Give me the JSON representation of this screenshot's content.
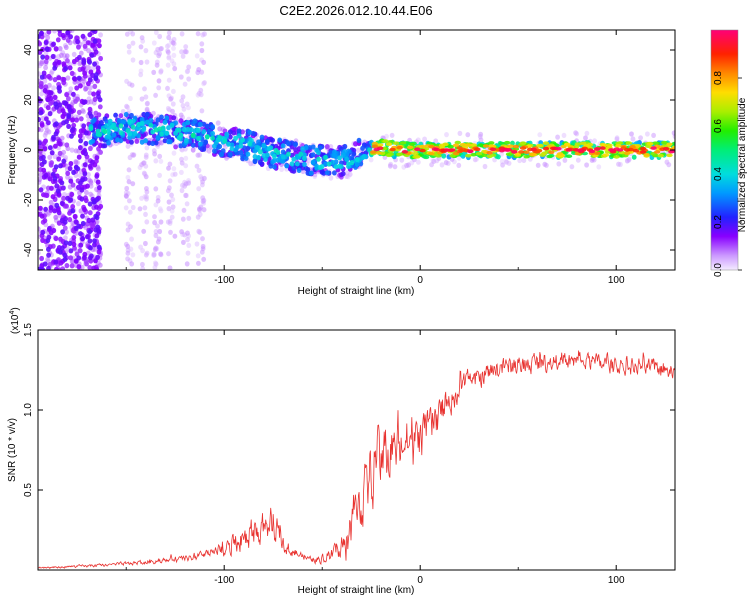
{
  "title": "C2E2.2026.012.10.44.E06",
  "chart_data": [
    {
      "type": "heatmap",
      "name": "spectrogram",
      "xlabel": "Height of straight line (km)",
      "ylabel": "Frequency (Hz)",
      "xlim": [
        -195,
        130
      ],
      "ylim": [
        -48,
        48
      ],
      "xticks": [
        -100,
        0,
        100
      ],
      "xtick_labels": [
        "-100",
        "0",
        "100"
      ],
      "yticks": [
        -40,
        -20,
        0,
        20,
        40
      ],
      "ytick_labels": [
        "-40",
        "-20",
        "0",
        "20",
        "40"
      ],
      "ridge": {
        "x": [
          -165,
          -150,
          -130,
          -110,
          -90,
          -70,
          -55,
          -40,
          -33,
          -28,
          -20,
          -10,
          0,
          20,
          60,
          100,
          130
        ],
        "y": [
          7,
          9,
          8,
          5,
          2,
          -2,
          -4,
          -5,
          -3,
          0,
          1,
          0,
          0,
          0,
          0,
          0,
          0
        ]
      },
      "colorbar": {
        "label": "Normalized spectral amplitude",
        "range": [
          0,
          1
        ],
        "ticks": [
          0.0,
          0.2,
          0.4,
          0.6,
          0.8
        ],
        "tick_labels": [
          "0.0",
          "0.2",
          "0.4",
          "0.6",
          "0.8"
        ]
      }
    },
    {
      "type": "line",
      "name": "snr",
      "xlabel": "Height of straight line (km)",
      "ylabel": "SNR (10 * v/v)",
      "multiplier": "(x10",
      "multiplier_exp": "4",
      "multiplier_close": ")",
      "xlim": [
        -195,
        130
      ],
      "ylim": [
        0,
        1.5
      ],
      "xticks": [
        -100,
        0,
        100
      ],
      "xtick_labels": [
        "-100",
        "0",
        "100"
      ],
      "yticks": [
        0.5,
        1.0,
        1.5
      ],
      "ytick_labels": [
        "0.5",
        "1.0",
        "1.5"
      ],
      "series": [
        {
          "name": "SNR",
          "color": "#e8322f",
          "x": [
            -195,
            -180,
            -160,
            -140,
            -120,
            -110,
            -100,
            -95,
            -90,
            -85,
            -80,
            -75,
            -70,
            -65,
            -60,
            -55,
            -50,
            -45,
            -40,
            -35,
            -30,
            -25,
            -20,
            -15,
            -10,
            -5,
            0,
            5,
            10,
            15,
            20,
            25,
            30,
            35,
            40,
            50,
            60,
            70,
            80,
            90,
            100,
            110,
            120,
            130
          ],
          "y": [
            0.01,
            0.02,
            0.03,
            0.05,
            0.07,
            0.09,
            0.12,
            0.15,
            0.19,
            0.24,
            0.28,
            0.25,
            0.19,
            0.12,
            0.08,
            0.06,
            0.07,
            0.09,
            0.15,
            0.3,
            0.45,
            0.6,
            0.7,
            0.75,
            0.78,
            0.8,
            0.82,
            0.88,
            0.98,
            1.06,
            1.12,
            1.17,
            1.2,
            1.24,
            1.26,
            1.28,
            1.3,
            1.3,
            1.3,
            1.29,
            1.28,
            1.27,
            1.26,
            1.25
          ],
          "noise": [
            0.005,
            0.008,
            0.01,
            0.015,
            0.02,
            0.03,
            0.05,
            0.07,
            0.09,
            0.1,
            0.1,
            0.09,
            0.07,
            0.04,
            0.02,
            0.02,
            0.03,
            0.05,
            0.1,
            0.16,
            0.2,
            0.22,
            0.22,
            0.2,
            0.18,
            0.16,
            0.15,
            0.14,
            0.12,
            0.1,
            0.09,
            0.08,
            0.07,
            0.07,
            0.07,
            0.07,
            0.07,
            0.06,
            0.06,
            0.06,
            0.06,
            0.06,
            0.06,
            0.06
          ]
        }
      ]
    }
  ]
}
